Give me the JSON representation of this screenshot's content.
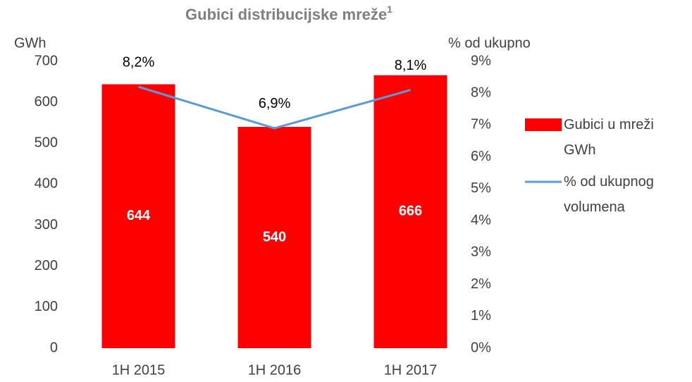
{
  "chart_data": {
    "type": "bar_line",
    "title": "Gubici distribucijske mreže",
    "title_note": "1",
    "y_label": "GWh",
    "y2_label": "% od ukupno",
    "categories": [
      "1H 2015",
      "1H 2016",
      "1H 2017"
    ],
    "series": [
      {
        "name": "Gubici u mreži GWh",
        "type": "bar",
        "color": "#ff0000",
        "values": [
          644,
          540,
          666
        ]
      },
      {
        "name": "% od ukupnog volumena",
        "type": "line",
        "axis": "y2",
        "color": "#5b9bd5",
        "values": [
          8.2,
          6.9,
          8.1
        ],
        "value_labels": [
          "8,2%",
          "6,9%",
          "8,1%"
        ]
      }
    ],
    "ylim": [
      0,
      700
    ],
    "yticks": [
      0,
      100,
      200,
      300,
      400,
      500,
      600,
      700
    ],
    "y2lim": [
      0,
      9
    ],
    "y2ticks": [
      {
        "value": 0,
        "label": "0%"
      },
      {
        "value": 1,
        "label": "1%"
      },
      {
        "value": 2,
        "label": "2%"
      },
      {
        "value": 3,
        "label": "3%"
      },
      {
        "value": 4,
        "label": "4%"
      },
      {
        "value": 5,
        "label": "5%"
      },
      {
        "value": 6,
        "label": "6%"
      },
      {
        "value": 7,
        "label": "7%"
      },
      {
        "value": 8,
        "label": "8%"
      },
      {
        "value": 9,
        "label": "9%"
      }
    ],
    "legend": "right"
  }
}
